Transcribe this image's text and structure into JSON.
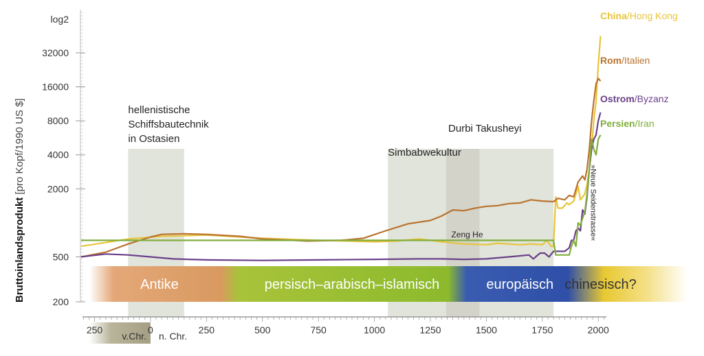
{
  "chart_data": {
    "type": "line",
    "title": "",
    "ylabel_bold": "Bruttoinlandsprodukt",
    "ylabel_rest": " [pro Kopf/1990 US $]",
    "y_scale_label": "log2",
    "y_scale": "log2",
    "ylim": [
      200,
      48000
    ],
    "xlim": [
      -310,
      2030
    ],
    "x_ticks": [
      -250,
      0,
      250,
      500,
      750,
      1000,
      1250,
      1500,
      1750,
      2000
    ],
    "x_tick_labels": [
      "250",
      "0",
      "250",
      "500",
      "750",
      "1000",
      "1250",
      "1500",
      "1750",
      "2000"
    ],
    "y_ticks": [
      200,
      500,
      2000,
      4000,
      8000,
      16000,
      32000
    ],
    "y_tick_labels": [
      "200",
      "500",
      "2000",
      "4000",
      "8000",
      "16000",
      "32000"
    ],
    "era_vchr_label": "v.Chr.",
    "era_nchr_label": "n. Chr.",
    "highlight_regions": [
      {
        "x0": -100,
        "x1": 150,
        "color": "#cfd6c6"
      },
      {
        "x0": 1060,
        "x1": 1320,
        "color": "#cfd6c6"
      },
      {
        "x0": 1320,
        "x1": 1470,
        "color": "#bdbbad"
      },
      {
        "x0": 1470,
        "x1": 1800,
        "color": "#cfd6c6"
      }
    ],
    "annotations": [
      {
        "lines": [
          "hellenistische",
          "Schiffsbautechnik",
          "in Ostasien"
        ],
        "x": -100
      },
      {
        "lines": [
          "Simbabwekultur"
        ],
        "x": 1060
      },
      {
        "lines": [
          "Durbi Takusheyi"
        ],
        "x": 1330
      },
      {
        "lines": [
          "Zeng He"
        ],
        "x": 1405
      },
      {
        "lines": [
          "»Neue Seidenstrasse«"
        ],
        "x": 1955
      }
    ],
    "eras": [
      {
        "label": "Antike",
        "x0": -310,
        "x1": 370,
        "center": 40
      },
      {
        "label": "persisch–arabisch–islamisch",
        "x0": 370,
        "x1": 1470,
        "center": 900
      },
      {
        "label": "europäisch",
        "x0": 1470,
        "x1": 1870,
        "center": 1650
      },
      {
        "label": "chinesisch?",
        "x0": 1870,
        "x1": 2030,
        "center": 2010
      }
    ],
    "series": [
      {
        "name": "China",
        "name_rest": "/Hong Kong",
        "color": "#e8c43a",
        "points": [
          [
            -310,
            620
          ],
          [
            -100,
            720
          ],
          [
            50,
            760
          ],
          [
            250,
            780
          ],
          [
            500,
            730
          ],
          [
            750,
            700
          ],
          [
            1000,
            680
          ],
          [
            1100,
            690
          ],
          [
            1200,
            720
          ],
          [
            1300,
            680
          ],
          [
            1400,
            650
          ],
          [
            1500,
            640
          ],
          [
            1550,
            660
          ],
          [
            1600,
            650
          ],
          [
            1650,
            640
          ],
          [
            1700,
            650
          ],
          [
            1750,
            640
          ],
          [
            1770,
            700
          ],
          [
            1790,
            620
          ],
          [
            1800,
            620
          ],
          [
            1810,
            1700
          ],
          [
            1820,
            1350
          ],
          [
            1840,
            1350
          ],
          [
            1860,
            1500
          ],
          [
            1870,
            1450
          ],
          [
            1890,
            1550
          ],
          [
            1910,
            2100
          ],
          [
            1920,
            1600
          ],
          [
            1940,
            1800
          ],
          [
            1950,
            2200
          ],
          [
            1960,
            3000
          ],
          [
            1970,
            4500
          ],
          [
            1980,
            8000
          ],
          [
            1990,
            12000
          ],
          [
            2000,
            25000
          ],
          [
            2010,
            45000
          ]
        ]
      },
      {
        "name": "Rom",
        "name_rest": "/Italien",
        "color": "#b9722e",
        "points": [
          [
            -310,
            500
          ],
          [
            -200,
            550
          ],
          [
            -100,
            650
          ],
          [
            0,
            750
          ],
          [
            50,
            790
          ],
          [
            150,
            800
          ],
          [
            250,
            790
          ],
          [
            400,
            760
          ],
          [
            500,
            720
          ],
          [
            700,
            690
          ],
          [
            850,
            700
          ],
          [
            950,
            730
          ],
          [
            1050,
            850
          ],
          [
            1150,
            980
          ],
          [
            1250,
            1050
          ],
          [
            1300,
            1150
          ],
          [
            1350,
            1300
          ],
          [
            1400,
            1280
          ],
          [
            1450,
            1350
          ],
          [
            1500,
            1400
          ],
          [
            1550,
            1420
          ],
          [
            1600,
            1480
          ],
          [
            1650,
            1500
          ],
          [
            1700,
            1600
          ],
          [
            1750,
            1560
          ],
          [
            1800,
            1540
          ],
          [
            1820,
            1650
          ],
          [
            1850,
            1600
          ],
          [
            1870,
            1750
          ],
          [
            1890,
            1700
          ],
          [
            1910,
            2300
          ],
          [
            1930,
            2600
          ],
          [
            1940,
            2400
          ],
          [
            1950,
            3000
          ],
          [
            1960,
            4500
          ],
          [
            1970,
            8000
          ],
          [
            1980,
            12000
          ],
          [
            1990,
            17000
          ],
          [
            2000,
            19000
          ],
          [
            2010,
            18000
          ]
        ]
      },
      {
        "name": "Ostrom",
        "name_rest": "/Byzanz",
        "color": "#6a3f8a",
        "points": [
          [
            -310,
            500
          ],
          [
            -200,
            530
          ],
          [
            -100,
            520
          ],
          [
            0,
            500
          ],
          [
            100,
            480
          ],
          [
            250,
            470
          ],
          [
            500,
            465
          ],
          [
            750,
            470
          ],
          [
            1000,
            475
          ],
          [
            1200,
            480
          ],
          [
            1300,
            480
          ],
          [
            1400,
            475
          ],
          [
            1500,
            480
          ],
          [
            1550,
            490
          ],
          [
            1600,
            500
          ],
          [
            1650,
            510
          ],
          [
            1690,
            520
          ],
          [
            1710,
            480
          ],
          [
            1720,
            500
          ],
          [
            1740,
            540
          ],
          [
            1760,
            540
          ],
          [
            1780,
            500
          ],
          [
            1800,
            560
          ],
          [
            1810,
            560
          ],
          [
            1820,
            560
          ],
          [
            1850,
            560
          ],
          [
            1870,
            600
          ],
          [
            1880,
            700
          ],
          [
            1890,
            700
          ],
          [
            1900,
            850
          ],
          [
            1910,
            900
          ],
          [
            1920,
            850
          ],
          [
            1930,
            1300
          ],
          [
            1940,
            1200
          ],
          [
            1950,
            1700
          ],
          [
            1960,
            3000
          ],
          [
            1970,
            4500
          ],
          [
            1980,
            5500
          ],
          [
            1990,
            6000
          ],
          [
            2000,
            8000
          ],
          [
            2010,
            9500
          ]
        ]
      },
      {
        "name": "Persien",
        "name_rest": "/Iran",
        "color": "#80ad3c",
        "points": [
          [
            -310,
            700
          ],
          [
            1800,
            700
          ],
          [
            1810,
            520
          ],
          [
            1870,
            520
          ],
          [
            1880,
            620
          ],
          [
            1890,
            700
          ],
          [
            1900,
            620
          ],
          [
            1910,
            1000
          ],
          [
            1920,
            950
          ],
          [
            1930,
            1100
          ],
          [
            1940,
            1250
          ],
          [
            1950,
            1800
          ],
          [
            1960,
            3000
          ],
          [
            1970,
            5500
          ],
          [
            1980,
            4500
          ],
          [
            1990,
            4000
          ],
          [
            2000,
            5500
          ],
          [
            2010,
            6000
          ]
        ]
      }
    ]
  }
}
